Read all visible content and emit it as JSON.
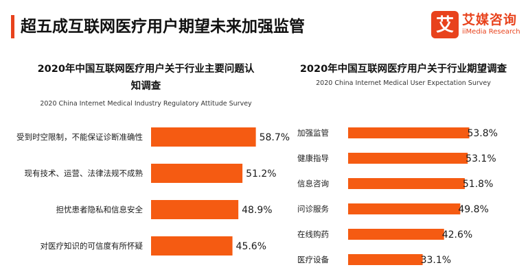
{
  "header": {
    "title": "超五成互联网医疗用户期望未来加强监管",
    "logo_icon": "艾",
    "logo_cn": "艾媒咨询",
    "logo_en": "iiMedia Research",
    "accent_color": "#e8421c",
    "bar_color": "#f55b12"
  },
  "chart_data": [
    {
      "type": "bar",
      "orientation": "horizontal",
      "title_line1": "2020年中国互联网医疗用户关于行业主要问题认",
      "title_line2": "知调查",
      "subtitle": "2020 China Internet Medical Industry Regulatory Attitude Survey",
      "categories": [
        "受到时空限制，不能保证诊断准确性",
        "现有技术、运营、法律法规不成熟",
        "担忧患者隐私和信息安全",
        "对医疗知识的可信度有所怀疑"
      ],
      "values": [
        58.7,
        51.2,
        48.9,
        45.6
      ],
      "value_labels": [
        "58.7%",
        "51.2%",
        "48.9%",
        "45.6%"
      ],
      "unit": "%",
      "xlim": [
        0,
        100
      ],
      "grid": false,
      "legend": "none"
    },
    {
      "type": "bar",
      "orientation": "horizontal",
      "title": "2020年中国互联网医疗用户关于行业期望调查",
      "subtitle": "2020 China Internet Medical User Expectation Survey",
      "categories": [
        "加强监管",
        "健康指导",
        "信息咨询",
        "问诊服务",
        "在线购药",
        "医疗设备"
      ],
      "values": [
        53.8,
        53.1,
        51.8,
        49.8,
        42.6,
        33.1
      ],
      "value_labels": [
        "53.8%",
        "53.1%",
        "51.8%",
        "49.8%",
        "42.6%",
        "33.1%"
      ],
      "unit": "%",
      "xlim": [
        0,
        100
      ],
      "grid": false,
      "legend": "none"
    }
  ]
}
